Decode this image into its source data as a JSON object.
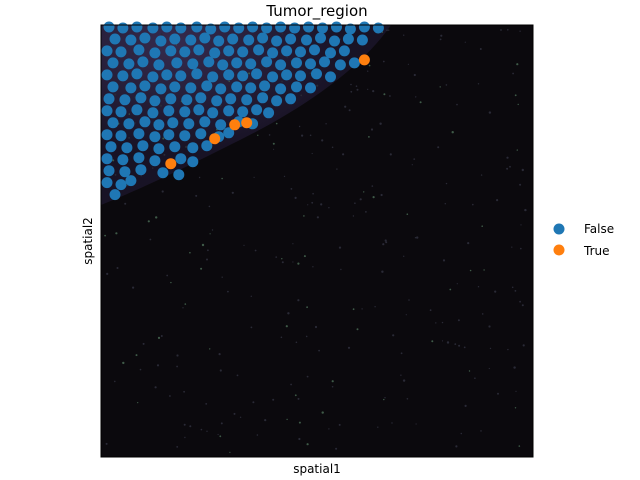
{
  "chart_data": {
    "type": "scatter",
    "title": "Tumor_region",
    "xlabel": "spatial1",
    "ylabel": "spatial2",
    "xlim": [
      0,
      433
    ],
    "ylim": [
      0,
      433
    ],
    "y_inverted": true,
    "grid": false,
    "ticks": false,
    "legend_placement": "right",
    "background": "spatial tissue image (dark)",
    "legend": [
      {
        "label": "False",
        "color": "#1f77b4"
      },
      {
        "label": "True",
        "color": "#ff7f0e"
      }
    ],
    "series": [
      {
        "name": "True",
        "color": "#ff7f0e",
        "points": [
          [
            264,
            35
          ],
          [
            146,
            98
          ],
          [
            134,
            100
          ],
          [
            114,
            114
          ],
          [
            70,
            139
          ]
        ]
      },
      {
        "name": "False",
        "color": "#1f77b4",
        "points": [
          [
            8,
            2
          ],
          [
            22,
            3
          ],
          [
            36,
            2
          ],
          [
            52,
            3
          ],
          [
            66,
            2
          ],
          [
            80,
            3
          ],
          [
            96,
            2
          ],
          [
            110,
            4
          ],
          [
            124,
            2
          ],
          [
            138,
            3
          ],
          [
            152,
            2
          ],
          [
            166,
            3
          ],
          [
            180,
            2
          ],
          [
            194,
            3
          ],
          [
            208,
            2
          ],
          [
            222,
            3
          ],
          [
            236,
            2
          ],
          [
            250,
            4
          ],
          [
            264,
            2
          ],
          [
            278,
            3
          ],
          [
            14,
            14
          ],
          [
            30,
            15
          ],
          [
            44,
            13
          ],
          [
            60,
            16
          ],
          [
            74,
            14
          ],
          [
            90,
            15
          ],
          [
            104,
            13
          ],
          [
            118,
            16
          ],
          [
            132,
            14
          ],
          [
            148,
            15
          ],
          [
            162,
            13
          ],
          [
            176,
            16
          ],
          [
            190,
            14
          ],
          [
            206,
            15
          ],
          [
            220,
            13
          ],
          [
            234,
            16
          ],
          [
            248,
            14
          ],
          [
            262,
            15
          ],
          [
            6,
            26
          ],
          [
            20,
            27
          ],
          [
            38,
            25
          ],
          [
            54,
            28
          ],
          [
            70,
            26
          ],
          [
            84,
            27
          ],
          [
            98,
            25
          ],
          [
            114,
            28
          ],
          [
            128,
            26
          ],
          [
            142,
            27
          ],
          [
            158,
            25
          ],
          [
            172,
            28
          ],
          [
            186,
            26
          ],
          [
            200,
            27
          ],
          [
            214,
            25
          ],
          [
            230,
            28
          ],
          [
            244,
            26
          ],
          [
            12,
            38
          ],
          [
            28,
            39
          ],
          [
            42,
            37
          ],
          [
            58,
            40
          ],
          [
            76,
            38
          ],
          [
            92,
            39
          ],
          [
            108,
            37
          ],
          [
            122,
            40
          ],
          [
            136,
            38
          ],
          [
            150,
            39
          ],
          [
            166,
            37
          ],
          [
            180,
            40
          ],
          [
            196,
            38
          ],
          [
            210,
            39
          ],
          [
            224,
            37
          ],
          [
            240,
            40
          ],
          [
            254,
            38
          ],
          [
            6,
            50
          ],
          [
            22,
            51
          ],
          [
            36,
            49
          ],
          [
            52,
            52
          ],
          [
            66,
            50
          ],
          [
            80,
            51
          ],
          [
            96,
            49
          ],
          [
            112,
            52
          ],
          [
            128,
            50
          ],
          [
            142,
            51
          ],
          [
            156,
            49
          ],
          [
            172,
            52
          ],
          [
            186,
            50
          ],
          [
            200,
            51
          ],
          [
            216,
            49
          ],
          [
            230,
            52
          ],
          [
            12,
            62
          ],
          [
            30,
            63
          ],
          [
            44,
            61
          ],
          [
            60,
            64
          ],
          [
            74,
            62
          ],
          [
            90,
            63
          ],
          [
            106,
            61
          ],
          [
            120,
            64
          ],
          [
            136,
            62
          ],
          [
            150,
            63
          ],
          [
            164,
            61
          ],
          [
            180,
            64
          ],
          [
            196,
            62
          ],
          [
            210,
            63
          ],
          [
            8,
            74
          ],
          [
            24,
            75
          ],
          [
            40,
            73
          ],
          [
            54,
            76
          ],
          [
            70,
            74
          ],
          [
            86,
            75
          ],
          [
            100,
            73
          ],
          [
            116,
            76
          ],
          [
            130,
            74
          ],
          [
            146,
            75
          ],
          [
            162,
            73
          ],
          [
            176,
            76
          ],
          [
            190,
            74
          ],
          [
            6,
            86
          ],
          [
            20,
            87
          ],
          [
            36,
            85
          ],
          [
            52,
            88
          ],
          [
            68,
            86
          ],
          [
            84,
            87
          ],
          [
            98,
            85
          ],
          [
            112,
            88
          ],
          [
            128,
            86
          ],
          [
            142,
            87
          ],
          [
            156,
            85
          ],
          [
            168,
            88
          ],
          [
            12,
            98
          ],
          [
            28,
            99
          ],
          [
            44,
            97
          ],
          [
            58,
            100
          ],
          [
            72,
            98
          ],
          [
            88,
            99
          ],
          [
            104,
            97
          ],
          [
            120,
            100
          ],
          [
            138,
            97
          ],
          [
            152,
            99
          ],
          [
            6,
            110
          ],
          [
            20,
            111
          ],
          [
            38,
            109
          ],
          [
            54,
            112
          ],
          [
            68,
            110
          ],
          [
            84,
            111
          ],
          [
            100,
            109
          ],
          [
            118,
            112
          ],
          [
            128,
            108
          ],
          [
            10,
            122
          ],
          [
            26,
            123
          ],
          [
            42,
            121
          ],
          [
            58,
            124
          ],
          [
            74,
            122
          ],
          [
            92,
            123
          ],
          [
            106,
            121
          ],
          [
            6,
            134
          ],
          [
            22,
            135
          ],
          [
            38,
            133
          ],
          [
            54,
            136
          ],
          [
            80,
            134
          ],
          [
            92,
            137
          ],
          [
            8,
            146
          ],
          [
            24,
            147
          ],
          [
            40,
            145
          ],
          [
            62,
            148
          ],
          [
            78,
            150
          ],
          [
            6,
            158
          ],
          [
            20,
            160
          ],
          [
            30,
            156
          ],
          [
            14,
            170
          ]
        ]
      }
    ]
  }
}
